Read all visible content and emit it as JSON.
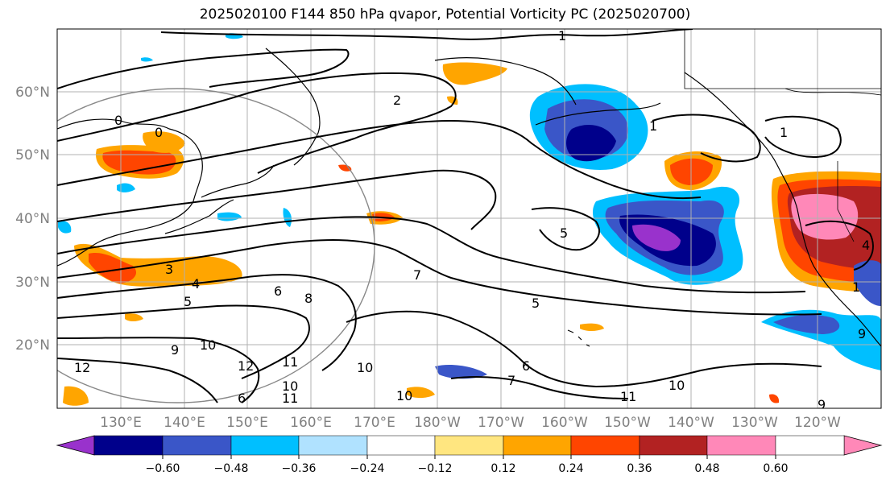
{
  "title": "2025020100 F144 850 hPa qvapor, Potential Vorticity PC (2025020700)",
  "lat_labels": [
    "60°N",
    "50°N",
    "40°N",
    "30°N",
    "20°N"
  ],
  "lon_labels": [
    "130°E",
    "140°E",
    "150°E",
    "160°E",
    "170°E",
    "180°W",
    "170°W",
    "160°W",
    "150°W",
    "140°W",
    "130°W",
    "120°W"
  ],
  "colorbar": {
    "colors": [
      "#9932cc",
      "#00008b",
      "#3a56c8",
      "#00bfff",
      "#b0e2ff",
      "#ffffff",
      "#ffe680",
      "#ffa500",
      "#ff4500",
      "#b22222",
      "#ff88b8"
    ],
    "labels": [
      "−0.60",
      "−0.48",
      "−0.36",
      "−0.24",
      "−0.12",
      "0.12",
      "0.24",
      "0.36",
      "0.48",
      "0.60"
    ]
  },
  "contour_labels": [
    "1",
    "2",
    "0",
    "0",
    "3",
    "4",
    "5",
    "6",
    "8",
    "7",
    "5",
    "5",
    "1",
    "1",
    "6",
    "7",
    "9",
    "10",
    "12",
    "11",
    "10",
    "10",
    "10",
    "12",
    "9",
    "1",
    "10",
    "11",
    "9",
    "6",
    "11",
    "4"
  ]
}
